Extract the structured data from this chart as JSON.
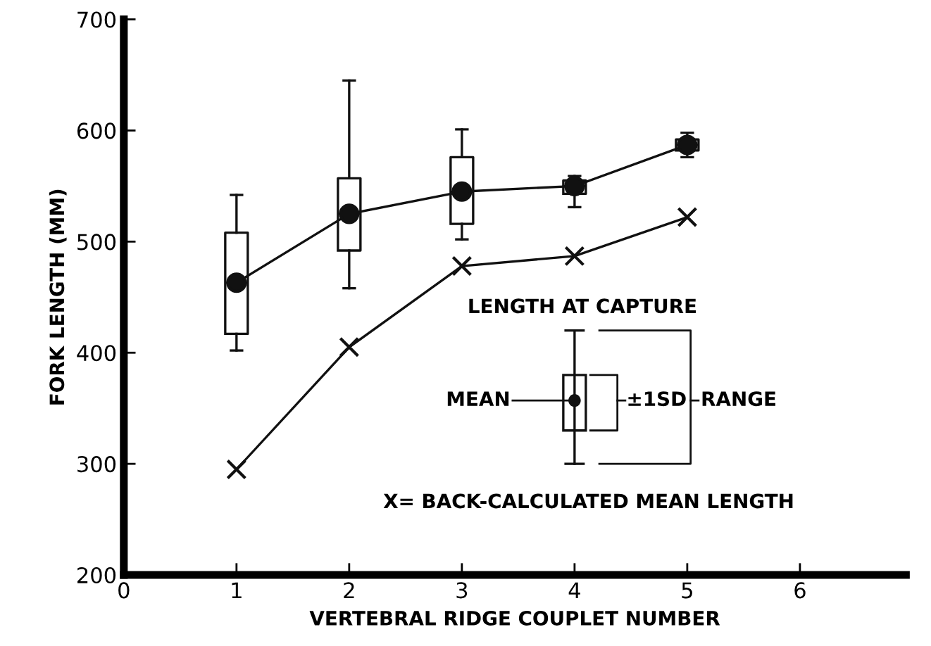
{
  "chart_data": {
    "type": "box",
    "xlabel": "VERTEBRAL RIDGE COUPLET NUMBER",
    "ylabel": "FORK LENGTH (MM)",
    "x": [
      1,
      2,
      3,
      4,
      5
    ],
    "xlim": [
      0,
      6.94
    ],
    "xticks": [
      0,
      1,
      2,
      3,
      4,
      5,
      6
    ],
    "ylim": [
      200,
      700
    ],
    "yticks": [
      200,
      300,
      400,
      500,
      600,
      700
    ],
    "grid": false,
    "series": [
      {
        "color": "#111111",
        "boxes": [
          {
            "low": 402,
            "q1": 417,
            "median": 463,
            "q3": 508,
            "high": 542
          },
          {
            "low": 458,
            "q1": 492,
            "median": 525,
            "q3": 557,
            "high": 645
          },
          {
            "low": 502,
            "q1": 516,
            "median": 545,
            "q3": 576,
            "high": 601
          },
          {
            "low": 531,
            "q1": 543,
            "median": 550,
            "q3": 555,
            "high": 559
          },
          {
            "low": 576,
            "q1": 582,
            "median": 587,
            "q3": 592,
            "high": 598
          }
        ]
      },
      {
        "type": "line",
        "color": "#111111",
        "marker": "circle",
        "values": [
          463,
          525,
          545,
          550,
          587
        ]
      },
      {
        "type": "line",
        "color": "#111111",
        "marker": "cross",
        "values": [
          295,
          405,
          478,
          487,
          522
        ]
      }
    ],
    "annotations": [
      "LENGTH AT CAPTURE",
      "MEAN",
      "±1SD",
      "RANGE",
      "X= BACK-CALCULATED MEAN LENGTH"
    ]
  }
}
